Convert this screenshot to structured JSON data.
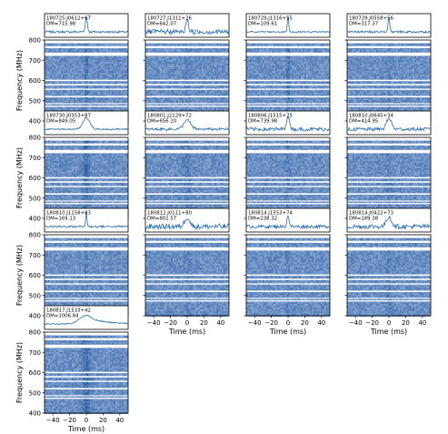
{
  "figure": {
    "ylabel": "Frequency (MHz)",
    "xlabel": "Time (ms)",
    "y_ticks": [
      "400",
      "500",
      "600",
      "700",
      "800"
    ],
    "x_ticks": [
      "−40",
      "−20",
      "0",
      "20",
      "40"
    ]
  },
  "colors": {
    "profile_line": "#2a6cae",
    "waterfall_base": "#2f74b5",
    "rfi_band": "#ffffff",
    "axis": "#000000"
  },
  "chart_data": [
    {
      "type": "heatmap",
      "name": "180725.J0612+67",
      "dm": "DM=715.98",
      "xlim": [
        -50,
        50
      ],
      "ylim": [
        400,
        800
      ],
      "profile": {
        "peak_x": 0,
        "peak_height": 0.95,
        "width": 1.2,
        "noise": 0.1
      },
      "burst": {
        "strength": 0.55,
        "drift": 0.0,
        "width": 1.5
      },
      "show_ylabels": true,
      "show_xlabels": false
    },
    {
      "type": "heatmap",
      "name": "180727.J1311+26",
      "dm": "DM=642.07",
      "xlim": [
        -50,
        50
      ],
      "ylim": [
        400,
        800
      ],
      "profile": {
        "peak_x": 0,
        "peak_height": 0.85,
        "width": 1.5,
        "noise": 0.22
      },
      "burst": {
        "strength": 0.18,
        "drift": 0.0,
        "width": 2.5
      },
      "show_ylabels": false,
      "show_xlabels": false
    },
    {
      "type": "heatmap",
      "name": "180729.J1316+55",
      "dm": "DM=109.61",
      "xlim": [
        -50,
        50
      ],
      "ylim": [
        400,
        800
      ],
      "profile": {
        "peak_x": 0,
        "peak_height": 0.98,
        "width": 0.8,
        "noise": 0.06
      },
      "burst": {
        "strength": 0.75,
        "drift": 0.0,
        "width": 1.0
      },
      "show_ylabels": false,
      "show_xlabels": false
    },
    {
      "type": "heatmap",
      "name": "180729.J0558+56",
      "dm": "DM=317.37",
      "xlim": [
        -50,
        50
      ],
      "ylim": [
        400,
        800
      ],
      "profile": {
        "peak_x": 0,
        "peak_height": 0.9,
        "width": 1.0,
        "noise": 0.1
      },
      "burst": {
        "strength": 0.35,
        "drift": 0.0,
        "width": 1.2
      },
      "show_ylabels": false,
      "show_xlabels": false
    },
    {
      "type": "heatmap",
      "name": "180730.J0353+87",
      "dm": "DM=849.05",
      "xlim": [
        -50,
        50
      ],
      "ylim": [
        400,
        800
      ],
      "profile": {
        "peak_x": 0,
        "peak_height": 0.75,
        "width": 4.0,
        "noise": 0.06
      },
      "burst": {
        "strength": 0.65,
        "drift": 0.0,
        "width": 3.0
      },
      "show_ylabels": true,
      "show_xlabels": false
    },
    {
      "type": "heatmap",
      "name": "180801.J2129+72",
      "dm": "DM=656.20",
      "xlim": [
        -50,
        50
      ],
      "ylim": [
        400,
        800
      ],
      "profile": {
        "peak_x": 0,
        "peak_height": 0.6,
        "width": 4.0,
        "noise": 0.12
      },
      "burst": {
        "strength": 0.35,
        "drift": -4.0,
        "width": 4.0
      },
      "show_ylabels": false,
      "show_xlabels": false
    },
    {
      "type": "heatmap",
      "name": "180806.J1515+75",
      "dm": "DM=739.98",
      "xlim": [
        -50,
        50
      ],
      "ylim": [
        400,
        800
      ],
      "profile": {
        "peak_x": 0,
        "peak_height": 0.75,
        "width": 2.0,
        "noise": 0.18
      },
      "burst": {
        "strength": 0.35,
        "drift": 0.0,
        "width": 2.0
      },
      "show_ylabels": false,
      "show_xlabels": false
    },
    {
      "type": "heatmap",
      "name": "180810.J0645+34",
      "dm": "DM=414.95",
      "xlim": [
        -50,
        50
      ],
      "ylim": [
        400,
        800
      ],
      "profile": {
        "peak_x": 0,
        "peak_height": 0.7,
        "width": 3.0,
        "noise": 0.16
      },
      "burst": {
        "strength": 0.22,
        "drift": 0.0,
        "width": 3.0
      },
      "show_ylabels": false,
      "show_xlabels": false
    },
    {
      "type": "heatmap",
      "name": "180810.J1158+83",
      "dm": "DM=169.13",
      "xlim": [
        -50,
        50
      ],
      "ylim": [
        400,
        800
      ],
      "profile": {
        "peak_x": 0,
        "peak_height": 0.9,
        "width": 0.8,
        "noise": 0.1
      },
      "burst": {
        "strength": 0.4,
        "drift": 0.0,
        "width": 1.0
      },
      "show_ylabels": true,
      "show_xlabels": false
    },
    {
      "type": "heatmap",
      "name": "180812.J0111+80",
      "dm": "DM=802.57",
      "xlim": [
        -50,
        50
      ],
      "ylim": [
        400,
        800
      ],
      "profile": {
        "peak_x": 0,
        "peak_height": 0.6,
        "width": 3.0,
        "noise": 0.25
      },
      "burst": {
        "strength": 0.18,
        "drift": 0.0,
        "width": 3.0
      },
      "show_ylabels": false,
      "show_xlabels": true
    },
    {
      "type": "heatmap",
      "name": "180814.J1553+74",
      "dm": "DM=238.32",
      "xlim": [
        -50,
        50
      ],
      "ylim": [
        400,
        800
      ],
      "profile": {
        "peak_x": 0,
        "peak_height": 0.75,
        "width": 1.2,
        "noise": 0.15
      },
      "burst": {
        "strength": 0.3,
        "drift": 0.0,
        "width": 1.2
      },
      "show_ylabels": false,
      "show_xlabels": true
    },
    {
      "type": "heatmap",
      "name": "180814.J0422+73",
      "dm": "DM=189.38",
      "xlim": [
        -50,
        50
      ],
      "ylim": [
        400,
        800
      ],
      "profile": {
        "peak_x": 0,
        "peak_height": 0.65,
        "width": 3.0,
        "noise": 0.22
      },
      "burst": {
        "strength": 0.3,
        "drift": 0.0,
        "width": 2.5
      },
      "show_ylabels": false,
      "show_xlabels": true
    },
    {
      "type": "heatmap",
      "name": "180817.J1533+42",
      "dm": "DM=1006.84",
      "xlim": [
        -50,
        50
      ],
      "ylim": [
        400,
        800
      ],
      "profile": {
        "peak_x": 0,
        "peak_height": 0.55,
        "width": 8.0,
        "noise": 0.05,
        "tail": true
      },
      "burst": {
        "strength": 0.6,
        "drift": 0.0,
        "width": 4.0
      },
      "show_ylabels": true,
      "show_xlabels": true
    }
  ]
}
